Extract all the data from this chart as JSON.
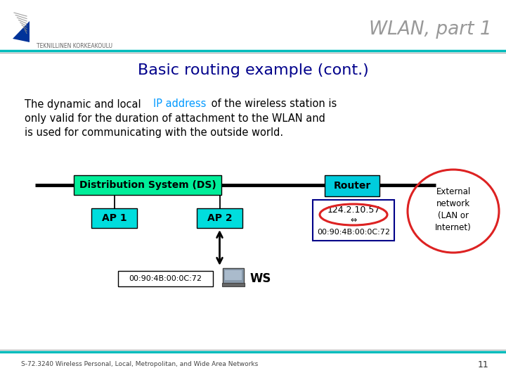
{
  "title": "WLAN, part 1",
  "slide_title": "Basic routing example (cont.)",
  "bg_color": "#FFFFFF",
  "title_color": "#999999",
  "slide_title_color": "#00008B",
  "ds_box_color": "#00EE99",
  "ds_text": "Distribution System (DS)",
  "ap1_box_color": "#00DDDD",
  "ap1_text": "AP 1",
  "ap2_box_color": "#00DDDD",
  "ap2_text": "AP 2",
  "router_box_color": "#00CCDD",
  "router_text": "Router",
  "router_ip": "124.2.10.57",
  "router_arrow": "⇔",
  "router_mac": "00:90:4B:00:0C:72",
  "ws_label_text": "00:90:4B:00:0C:72",
  "ws_text": "WS",
  "external_text": "External\nnetwork\n(LAN or\nInternet)",
  "ellipse_color": "#DD2222",
  "footer_text": "S-72.3240 Wireless Personal, Local, Metropolitan, and Wide Area Networks",
  "footer_page": "11",
  "header_teal": "#00BBBB",
  "header_gray": "#AAAAAA",
  "body_black": "#000000",
  "body_blue": "#0099FF",
  "logo_text": "TEKNILLINEN KORKEAKOULU"
}
